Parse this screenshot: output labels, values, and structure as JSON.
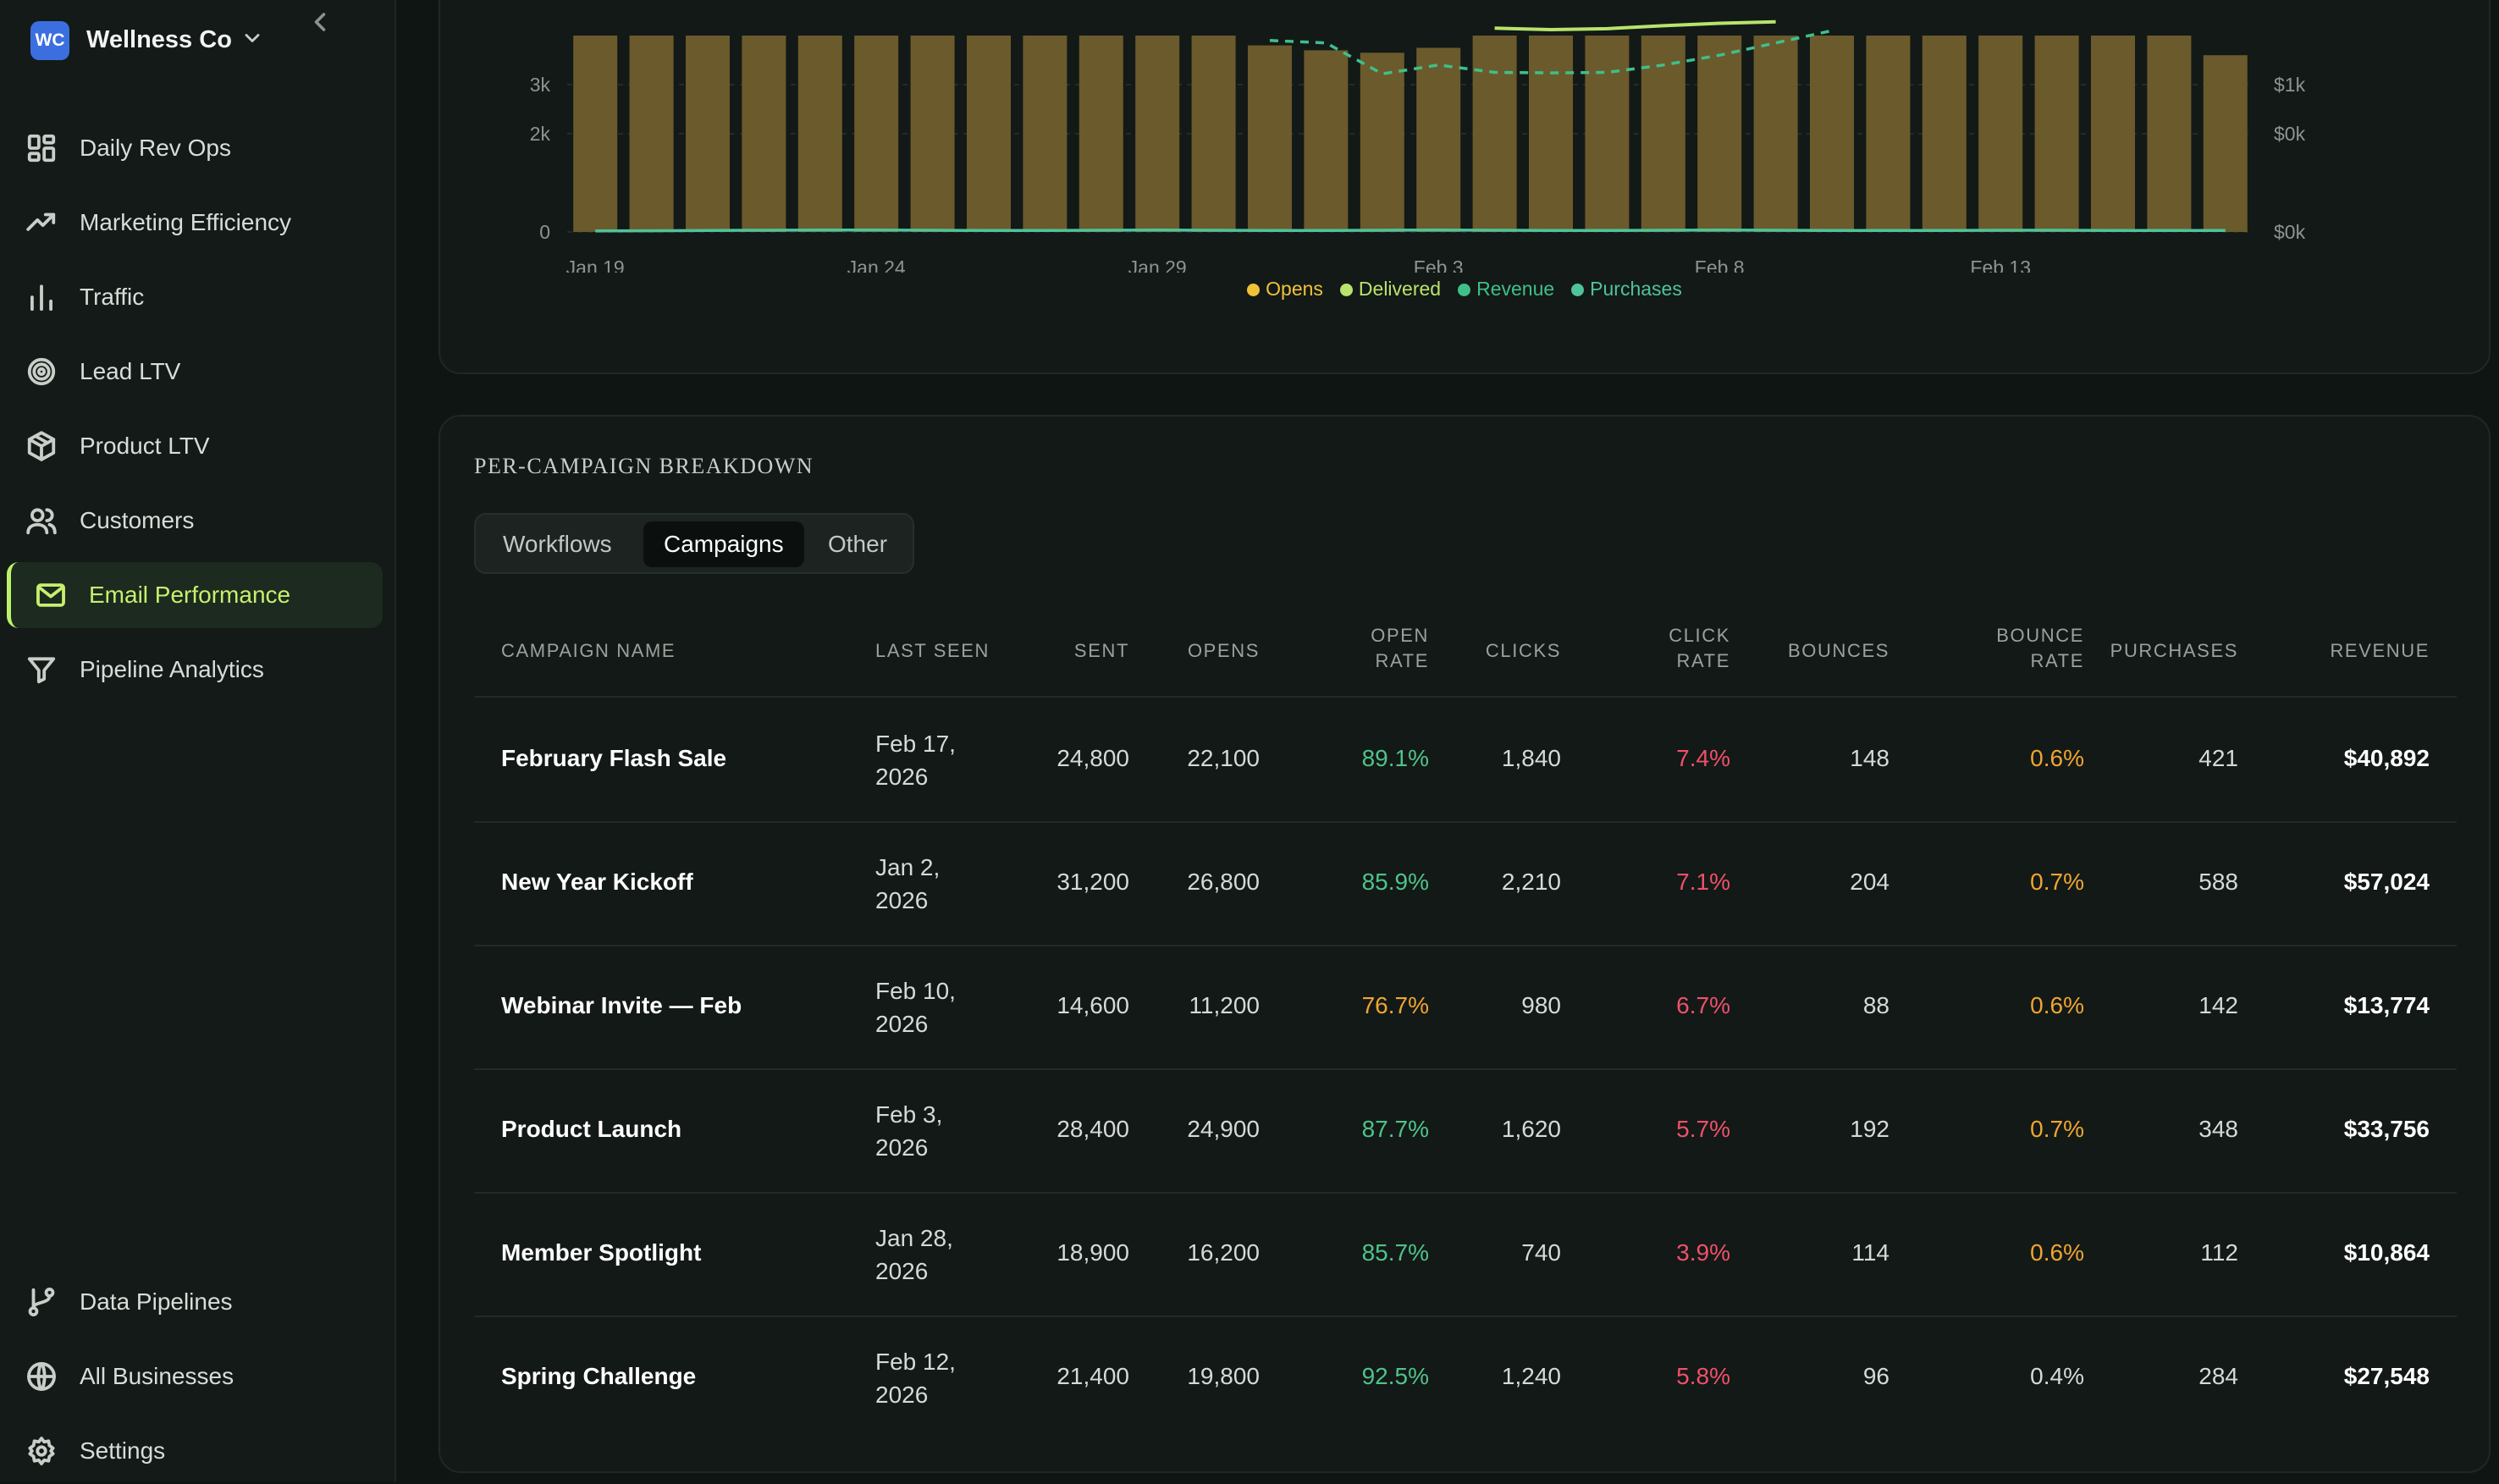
{
  "sidebar": {
    "brand": {
      "logo": "WC",
      "name": "Wellness Co"
    },
    "nav": [
      {
        "label": "Daily Rev Ops",
        "icon": "dashboard-icon",
        "active": false
      },
      {
        "label": "Marketing Efficiency",
        "icon": "trending-up-icon",
        "active": false
      },
      {
        "label": "Traffic",
        "icon": "bar-chart-icon",
        "active": false
      },
      {
        "label": "Lead LTV",
        "icon": "target-icon",
        "active": false
      },
      {
        "label": "Product LTV",
        "icon": "package-icon",
        "active": false
      },
      {
        "label": "Customers",
        "icon": "users-icon",
        "active": false
      },
      {
        "label": "Email Performance",
        "icon": "mail-icon",
        "active": true
      },
      {
        "label": "Pipeline Analytics",
        "icon": "filter-icon",
        "active": false
      }
    ],
    "bottom_nav": [
      {
        "label": "Data Pipelines",
        "icon": "git-branch-icon"
      },
      {
        "label": "All Businesses",
        "icon": "globe-icon"
      },
      {
        "label": "Settings",
        "icon": "gear-icon"
      }
    ]
  },
  "chart_data": {
    "type": "bar",
    "x_tick_labels": [
      "Jan 19",
      "Jan 24",
      "Jan 29",
      "Feb 3",
      "Feb 8",
      "Feb 13"
    ],
    "y_left_ticks": [
      "0",
      "2k",
      "3k"
    ],
    "y_right_ticks": [
      "$0k",
      "$0k",
      "$1k"
    ],
    "categories": [
      "Jan 19",
      "Jan 20",
      "Jan 21",
      "Jan 22",
      "Jan 23",
      "Jan 24",
      "Jan 25",
      "Jan 26",
      "Jan 27",
      "Jan 28",
      "Jan 29",
      "Jan 30",
      "Jan 31",
      "Feb 1",
      "Feb 2",
      "Feb 3",
      "Feb 4",
      "Feb 5",
      "Feb 6",
      "Feb 7",
      "Feb 8",
      "Feb 9",
      "Feb 10",
      "Feb 11",
      "Feb 12",
      "Feb 13",
      "Feb 14",
      "Feb 15",
      "Feb 16",
      "Feb 17"
    ],
    "series": [
      {
        "name": "Opens",
        "type": "bar",
        "color": "#f0c23a",
        "values": [
          4000,
          4000,
          4000,
          4000,
          4000,
          4000,
          4000,
          4000,
          4000,
          4000,
          4000,
          4000,
          3800,
          3700,
          3650,
          3750,
          4000,
          4000,
          4000,
          4000,
          4000,
          4000,
          4000,
          4000,
          4000,
          4000,
          4000,
          4000,
          4000,
          3600
        ]
      },
      {
        "name": "Delivered",
        "type": "line",
        "color": "#b9e36b",
        "values": [
          null,
          null,
          null,
          null,
          null,
          null,
          null,
          null,
          null,
          null,
          null,
          null,
          null,
          null,
          null,
          null,
          4150,
          4120,
          4140,
          4200,
          4250,
          4280,
          null,
          null,
          null,
          null,
          null,
          null,
          null,
          null
        ]
      },
      {
        "name": "Revenue",
        "type": "dashed-line",
        "color": "#3fbf8a",
        "values": [
          null,
          null,
          null,
          null,
          null,
          null,
          null,
          null,
          null,
          null,
          null,
          null,
          3900,
          3850,
          3220,
          3400,
          3250,
          3240,
          3250,
          3400,
          3600,
          3850,
          4100,
          null,
          null,
          null,
          null,
          null,
          null,
          null
        ]
      },
      {
        "name": "Purchases",
        "type": "line",
        "color": "#4fc39a",
        "values": [
          20,
          25,
          30,
          35,
          40,
          40,
          35,
          30,
          30,
          35,
          40,
          35,
          30,
          30,
          35,
          40,
          35,
          30,
          30,
          35,
          40,
          35,
          30,
          30,
          30,
          35,
          35,
          30,
          30,
          30
        ]
      }
    ],
    "grid": true,
    "legend_position": "bottom-center"
  },
  "breakdown": {
    "title": "PER-CAMPAIGN BREAKDOWN",
    "tabs": [
      {
        "label": "Workflows",
        "active": false
      },
      {
        "label": "Campaigns",
        "active": true
      },
      {
        "label": "Other",
        "active": false
      }
    ],
    "columns": {
      "name": "CAMPAIGN NAME",
      "last_seen": "LAST SEEN",
      "sent": "SENT",
      "opens": "OPENS",
      "open_rate_1": "OPEN",
      "open_rate_2": "RATE",
      "clicks": "CLICKS",
      "click_rate_1": "CLICK",
      "click_rate_2": "RATE",
      "bounces": "BOUNCES",
      "bounce_rate_1": "BOUNCE",
      "bounce_rate_2": "RATE",
      "purchases": "PURCHASES",
      "revenue": "REVENUE"
    },
    "rows": [
      {
        "name": "February Flash Sale",
        "date1": "Feb 17,",
        "date2": "2026",
        "sent": "24,800",
        "opens": "22,100",
        "open_rate": "89.1%",
        "clicks": "1,840",
        "click_rate": "7.4%",
        "bounces": "148",
        "bounce_rate": "0.6%",
        "purchases": "421",
        "revenue": "$40,892",
        "open_color": "#4fc38a",
        "bounce_color": "#f0a531"
      },
      {
        "name": "New Year Kickoff",
        "date1": "Jan 2,",
        "date2": "2026",
        "sent": "31,200",
        "opens": "26,800",
        "open_rate": "85.9%",
        "clicks": "2,210",
        "click_rate": "7.1%",
        "bounces": "204",
        "bounce_rate": "0.7%",
        "purchases": "588",
        "revenue": "$57,024",
        "open_color": "#4fc38a",
        "bounce_color": "#f0a531"
      },
      {
        "name": "Webinar Invite — Feb",
        "date1": "Feb 10,",
        "date2": "2026",
        "sent": "14,600",
        "opens": "11,200",
        "open_rate": "76.7%",
        "clicks": "980",
        "click_rate": "6.7%",
        "bounces": "88",
        "bounce_rate": "0.6%",
        "purchases": "142",
        "revenue": "$13,774",
        "open_color": "#f0a531",
        "bounce_color": "#f0a531"
      },
      {
        "name": "Product Launch",
        "date1": "Feb 3,",
        "date2": "2026",
        "sent": "28,400",
        "opens": "24,900",
        "open_rate": "87.7%",
        "clicks": "1,620",
        "click_rate": "5.7%",
        "bounces": "192",
        "bounce_rate": "0.7%",
        "purchases": "348",
        "revenue": "$33,756",
        "open_color": "#4fc38a",
        "bounce_color": "#f0a531"
      },
      {
        "name": "Member Spotlight",
        "date1": "Jan 28,",
        "date2": "2026",
        "sent": "18,900",
        "opens": "16,200",
        "open_rate": "85.7%",
        "clicks": "740",
        "click_rate": "3.9%",
        "bounces": "114",
        "bounce_rate": "0.6%",
        "purchases": "112",
        "revenue": "$10,864",
        "open_color": "#4fc38a",
        "bounce_color": "#f0a531"
      },
      {
        "name": "Spring Challenge",
        "date1": "Feb 12,",
        "date2": "2026",
        "sent": "21,400",
        "opens": "19,800",
        "open_rate": "92.5%",
        "clicks": "1,240",
        "click_rate": "5.8%",
        "bounces": "96",
        "bounce_rate": "0.4%",
        "purchases": "284",
        "revenue": "$27,548",
        "open_color": "#4fc38a",
        "bounce_color": "#d6dad6"
      }
    ],
    "colors": {
      "click_rate": "#f0506a"
    }
  }
}
